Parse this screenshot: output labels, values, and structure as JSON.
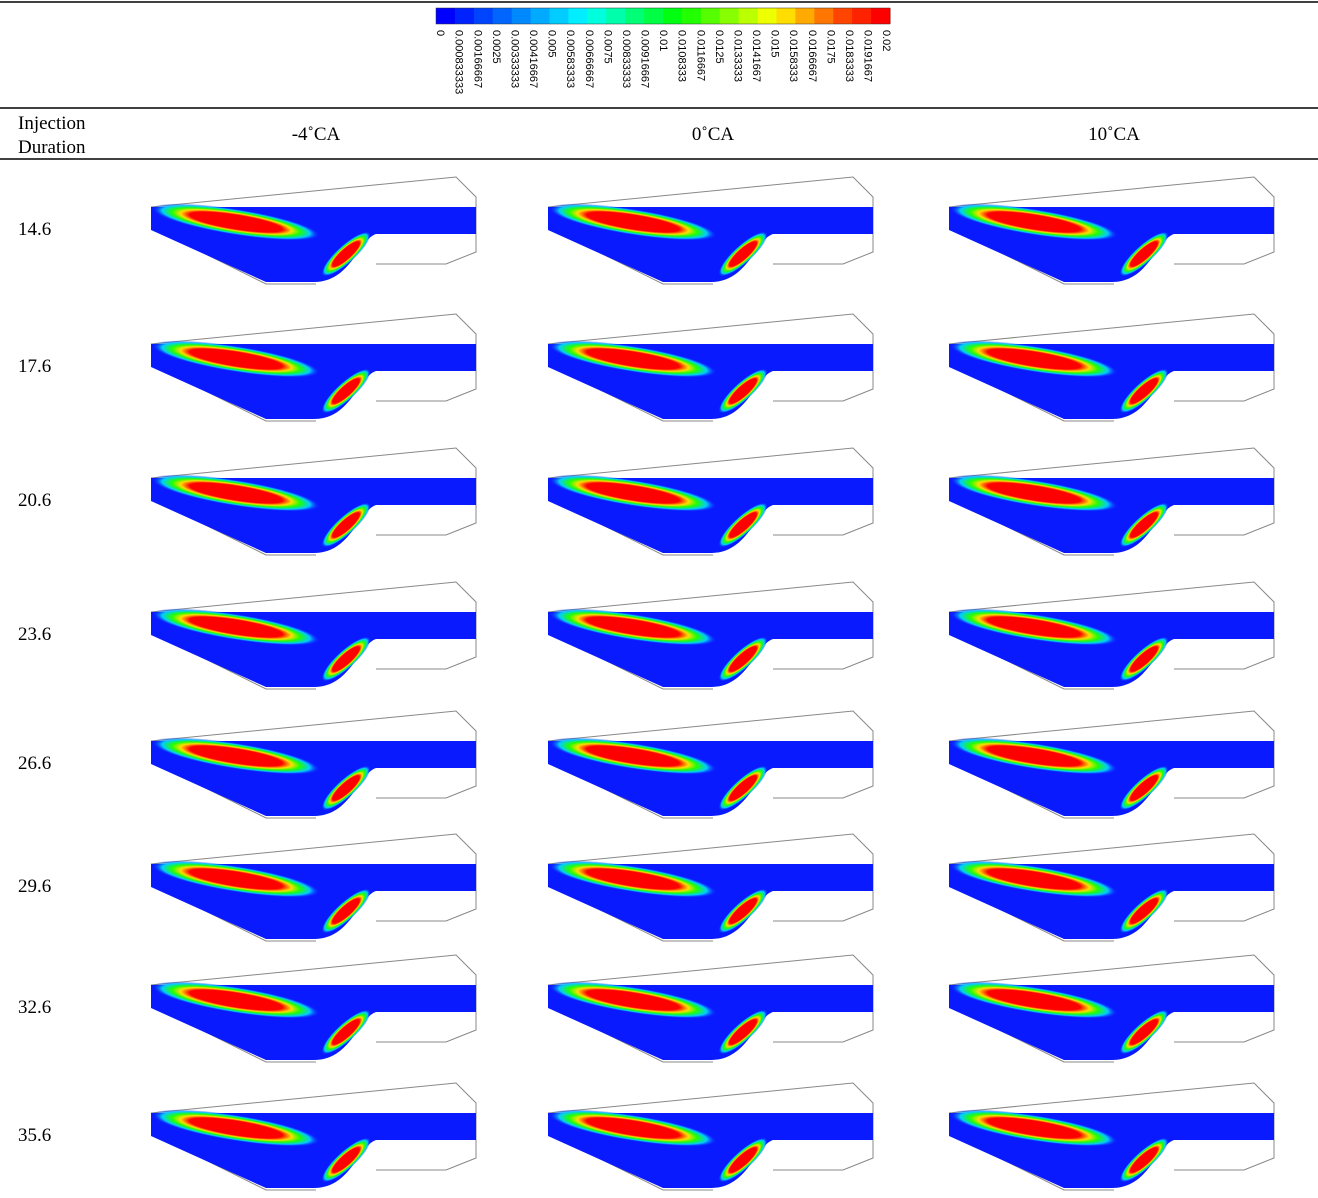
{
  "colorbar": {
    "labels": [
      0,
      0.000833333,
      0.00166667,
      0.0025,
      0.00333333,
      0.00416667,
      0.005,
      0.00583333,
      0.00666667,
      0.0075,
      0.00833333,
      0.00916667,
      0.01,
      0.0108333,
      0.0116667,
      0.0125,
      0.0133333,
      0.0141667,
      0.015,
      0.0158333,
      0.0166667,
      0.0175,
      0.0183333,
      0.0191667,
      0.02
    ],
    "colors": [
      "#0000ff",
      "#0022ff",
      "#0044ff",
      "#0066ff",
      "#0088ff",
      "#00aaff",
      "#00ccff",
      "#00eeff",
      "#00ffdd",
      "#00ffaa",
      "#00ff77",
      "#00ff44",
      "#00ff11",
      "#22ff00",
      "#55ff00",
      "#88ff00",
      "#bbff00",
      "#eeff00",
      "#ffdd00",
      "#ffaa00",
      "#ff7700",
      "#ff4400",
      "#ff2200",
      "#ff0000"
    ]
  },
  "table": {
    "header": {
      "duration": "Injection Duration",
      "columns": [
        "-4˚CA",
        "0˚CA",
        "10˚CA"
      ]
    },
    "rows": [
      14.6,
      17.6,
      20.6,
      23.6,
      26.6,
      29.6,
      32.6,
      35.6
    ]
  }
}
